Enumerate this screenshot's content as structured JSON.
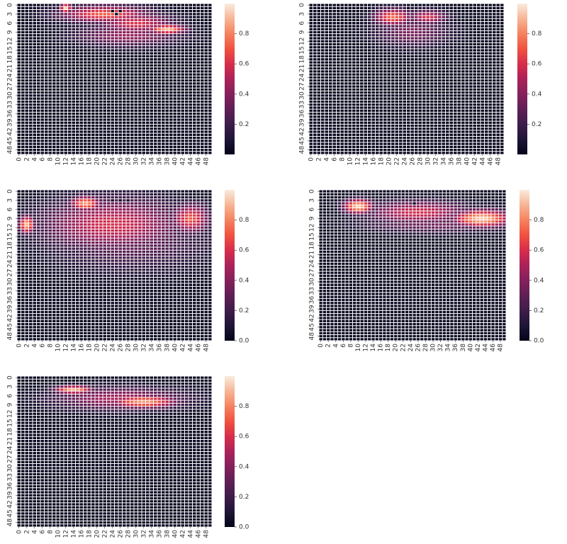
{
  "chart_data": [
    {
      "type": "heatmap",
      "grid_rows": 50,
      "grid_cols": 50,
      "x_tick_labels": [
        "0",
        "2",
        "4",
        "6",
        "8",
        "10",
        "12",
        "14",
        "16",
        "18",
        "20",
        "22",
        "24",
        "26",
        "28",
        "30",
        "32",
        "34",
        "36",
        "38",
        "40",
        "42",
        "44",
        "46",
        "48"
      ],
      "y_tick_labels": [
        "0",
        "3",
        "6",
        "9",
        "12",
        "15",
        "18",
        "21",
        "24",
        "27",
        "30",
        "33",
        "36",
        "39",
        "42",
        "45",
        "48"
      ],
      "colorbar_ticks": [
        "0.2",
        "0.4",
        "0.6",
        "0.8"
      ],
      "vmin": 0,
      "vmax": 1,
      "colormap": "rocket",
      "blobs": [
        {
          "r": 1,
          "c": 12,
          "dr": 1.5,
          "dc": 1.5,
          "v": 0.95
        },
        {
          "r": 3,
          "c": 22,
          "dr": 3,
          "dc": 12,
          "v": 0.72
        },
        {
          "r": 6,
          "c": 30,
          "dr": 3.5,
          "dc": 10,
          "v": 0.62
        },
        {
          "r": 8,
          "c": 38,
          "dr": 1.6,
          "dc": 5,
          "v": 0.9
        },
        {
          "r": 10,
          "c": 28,
          "dr": 4,
          "dc": 14,
          "v": 0.45
        }
      ],
      "holes": [
        {
          "r": 2,
          "c": 24
        },
        {
          "r": 2,
          "c": 26
        },
        {
          "r": 3,
          "c": 25
        }
      ]
    },
    {
      "type": "heatmap",
      "grid_rows": 50,
      "grid_cols": 50,
      "x_tick_labels": [
        "0",
        "2",
        "4",
        "6",
        "8",
        "10",
        "12",
        "14",
        "16",
        "18",
        "20",
        "22",
        "24",
        "26",
        "28",
        "30",
        "32",
        "34",
        "36",
        "38",
        "40",
        "42",
        "44",
        "46",
        "48"
      ],
      "y_tick_labels": [
        "0",
        "3",
        "6",
        "9",
        "12",
        "15",
        "18",
        "21",
        "24",
        "27",
        "30",
        "33",
        "36",
        "39",
        "42",
        "45",
        "48"
      ],
      "colorbar_ticks": [
        "0.2",
        "0.4",
        "0.6",
        "0.8"
      ],
      "vmin": 0,
      "vmax": 1,
      "colormap": "rocket",
      "blobs": [
        {
          "r": 4,
          "c": 21,
          "dr": 3,
          "dc": 5,
          "v": 0.75
        },
        {
          "r": 4,
          "c": 30,
          "dr": 2.5,
          "dc": 5,
          "v": 0.6
        },
        {
          "r": 9,
          "c": 26,
          "dr": 5,
          "dc": 10,
          "v": 0.38
        }
      ],
      "holes": [
        {
          "r": 1,
          "c": 25
        }
      ]
    },
    {
      "type": "heatmap",
      "grid_rows": 50,
      "grid_cols": 50,
      "x_tick_labels": [
        "0",
        "2",
        "4",
        "6",
        "8",
        "10",
        "12",
        "14",
        "16",
        "18",
        "20",
        "22",
        "24",
        "26",
        "28",
        "30",
        "32",
        "34",
        "36",
        "38",
        "40",
        "42",
        "44",
        "46",
        "48"
      ],
      "y_tick_labels": [
        "0",
        "3",
        "6",
        "9",
        "12",
        "15",
        "18",
        "21",
        "24",
        "27",
        "30",
        "33",
        "36",
        "39",
        "42",
        "45",
        "48"
      ],
      "colorbar_ticks": [
        "0.0",
        "0.2",
        "0.4",
        "0.6",
        "0.8"
      ],
      "vmin": 0,
      "vmax": 1,
      "colormap": "rocket",
      "blobs": [
        {
          "r": 4,
          "c": 17,
          "dr": 2.5,
          "dc": 4,
          "v": 0.85
        },
        {
          "r": 11,
          "c": 24,
          "dr": 9,
          "dc": 19,
          "v": 0.6
        },
        {
          "r": 11,
          "c": 2,
          "dr": 3,
          "dc": 2,
          "v": 0.9
        },
        {
          "r": 9,
          "c": 44,
          "dr": 5,
          "dc": 5,
          "v": 0.7
        },
        {
          "r": 16,
          "c": 28,
          "dr": 11,
          "dc": 22,
          "v": 0.32
        }
      ],
      "holes": [
        {
          "r": 3,
          "c": 26
        },
        {
          "r": 3,
          "c": 28
        },
        {
          "r": 3,
          "c": 24
        }
      ]
    },
    {
      "type": "heatmap",
      "grid_rows": 50,
      "grid_cols": 50,
      "x_tick_labels": [
        "0",
        "2",
        "4",
        "6",
        "8",
        "10",
        "12",
        "14",
        "16",
        "18",
        "20",
        "22",
        "24",
        "26",
        "28",
        "30",
        "32",
        "34",
        "36",
        "38",
        "40",
        "42",
        "44",
        "46",
        "48"
      ],
      "y_tick_labels": [
        "0",
        "3",
        "6",
        "9",
        "12",
        "15",
        "18",
        "21",
        "24",
        "27",
        "30",
        "33",
        "36",
        "39",
        "42",
        "45",
        "48"
      ],
      "colorbar_ticks": [
        "0.0",
        "0.2",
        "0.4",
        "0.6",
        "0.8"
      ],
      "vmin": 0,
      "vmax": 1,
      "colormap": "rocket",
      "blobs": [
        {
          "r": 5,
          "c": 10,
          "dr": 2.5,
          "dc": 4,
          "v": 0.95
        },
        {
          "r": 9,
          "c": 43,
          "dr": 3,
          "dc": 8,
          "v": 0.95
        },
        {
          "r": 7,
          "c": 26,
          "dr": 4,
          "dc": 14,
          "v": 0.6
        },
        {
          "r": 11,
          "c": 30,
          "dr": 3,
          "dc": 20,
          "v": 0.35
        }
      ],
      "holes": [
        {
          "r": 4,
          "c": 25
        }
      ]
    },
    {
      "type": "heatmap",
      "grid_rows": 50,
      "grid_cols": 50,
      "x_tick_labels": [
        "0",
        "2",
        "4",
        "6",
        "8",
        "10",
        "12",
        "14",
        "16",
        "18",
        "20",
        "22",
        "24",
        "26",
        "28",
        "30",
        "32",
        "34",
        "36",
        "38",
        "40",
        "42",
        "44",
        "46",
        "48"
      ],
      "y_tick_labels": [
        "0",
        "3",
        "6",
        "9",
        "12",
        "15",
        "18",
        "21",
        "24",
        "27",
        "30",
        "33",
        "36",
        "39",
        "42",
        "45",
        "48"
      ],
      "colorbar_ticks": [
        "0.0",
        "0.2",
        "0.4",
        "0.6",
        "0.8"
      ],
      "vmin": 0,
      "vmax": 1,
      "colormap": "rocket",
      "blobs": [
        {
          "r": 4,
          "c": 14,
          "dr": 1.4,
          "dc": 5,
          "v": 0.9
        },
        {
          "r": 8,
          "c": 32,
          "dr": 2.2,
          "dc": 9,
          "v": 0.85
        },
        {
          "r": 7,
          "c": 26,
          "dr": 4,
          "dc": 18,
          "v": 0.5
        }
      ],
      "holes": [
        {
          "r": 2,
          "c": 25
        }
      ]
    }
  ]
}
